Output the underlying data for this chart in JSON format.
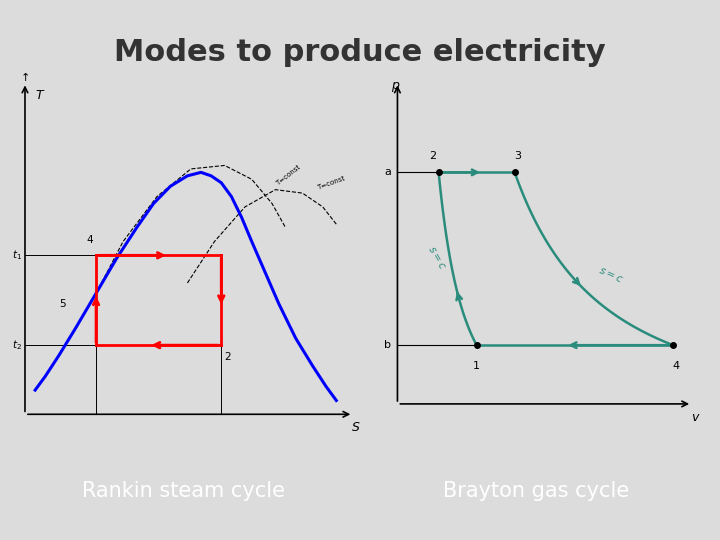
{
  "title": "Modes to produce electricity",
  "title_fontsize": 22,
  "title_color": "#333333",
  "background_color": "#dcdcdc",
  "label1": "Rankin steam cycle",
  "label2": "Brayton gas cycle",
  "label_bg": "#3ab0c3",
  "label_fg": "#ffffff",
  "label_fontsize": 15,
  "brayton_color": "#2a8c7c"
}
